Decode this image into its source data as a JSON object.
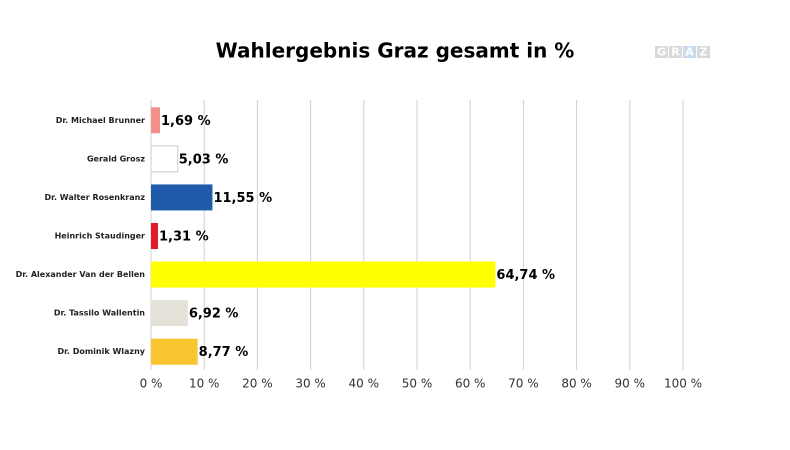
{
  "chart_data": {
    "type": "hbar",
    "title": "Wahlergebnis Graz gesamt in %",
    "categories": [
      "Dr. Michael Brunner",
      "Gerald Grosz",
      "Dr. Walter Rosenkranz",
      "Heinrich Staudinger",
      "Dr. Alexander Van der Bellen",
      "Dr. Tassilo Wallentin",
      "Dr. Dominik Wlazny"
    ],
    "values": [
      1.69,
      5.03,
      11.55,
      1.31,
      64.74,
      6.92,
      8.77
    ],
    "value_labels": [
      "1,69 %",
      "5,03 %",
      "11,55 %",
      "1,31 %",
      "64,74 %",
      "6,92 %",
      "8,77 %"
    ],
    "colors": [
      "#f4908a",
      "#ffffff",
      "#1f5ba8",
      "#e0192b",
      "#ffff00",
      "#e3e1d8",
      "#f9c630"
    ],
    "xlim": [
      0,
      100
    ],
    "xticks": [
      {
        "value": 0,
        "label": "0 %"
      },
      {
        "value": 10,
        "label": "10 %"
      },
      {
        "value": 20,
        "label": "20 %"
      },
      {
        "value": 30,
        "label": "30 %"
      },
      {
        "value": 40,
        "label": "40 %"
      },
      {
        "value": 50,
        "label": "50 %"
      },
      {
        "value": 60,
        "label": "60 %"
      },
      {
        "value": 70,
        "label": "70 %"
      },
      {
        "value": 80,
        "label": "80 %"
      },
      {
        "value": 90,
        "label": "90 %"
      },
      {
        "value": 100,
        "label": "100 %"
      }
    ],
    "grid": true
  },
  "logo": [
    "G",
    "R",
    "A",
    "Z"
  ]
}
